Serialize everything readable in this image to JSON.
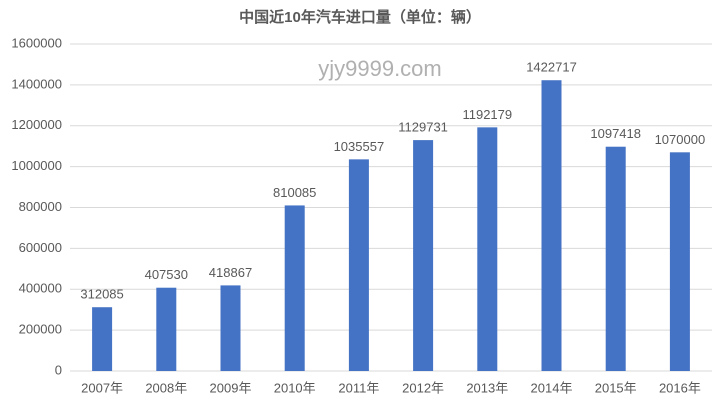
{
  "chart_data": {
    "type": "bar",
    "title": "中国近10年汽车进口量（单位：辆）",
    "watermark": "yjy9999.com",
    "categories": [
      "2007年",
      "2008年",
      "2009年",
      "2010年",
      "2011年",
      "2012年",
      "2013年",
      "2014年",
      "2015年",
      "2016年"
    ],
    "values": [
      312085,
      407530,
      418867,
      810085,
      1035557,
      1129731,
      1192179,
      1422717,
      1097418,
      1070000
    ],
    "color": "#4472c4",
    "ylim": [
      0,
      1600000
    ],
    "yticks": [
      0,
      200000,
      400000,
      600000,
      800000,
      1000000,
      1200000,
      1400000,
      1600000
    ],
    "grid": true
  }
}
